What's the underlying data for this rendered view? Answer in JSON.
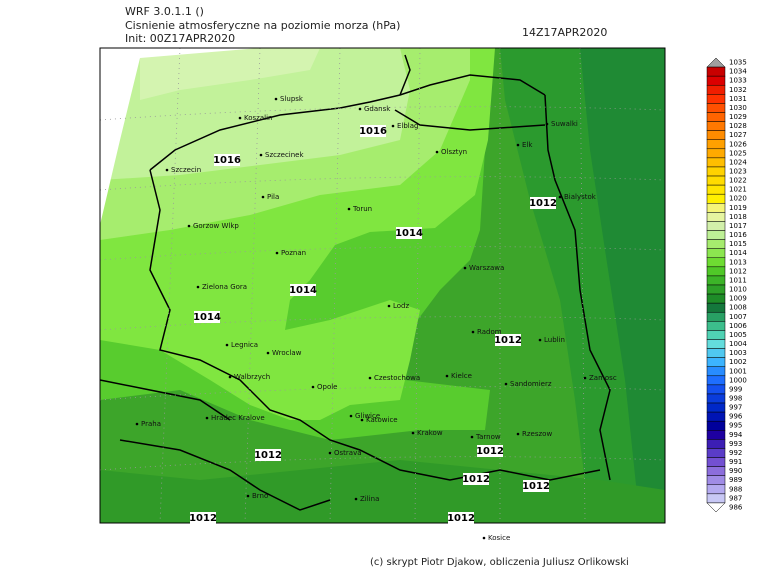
{
  "header": {
    "model": "WRF 3.0.1.1 ()",
    "title": "Cisnienie atmosferyczne na poziomie morza (hPa)",
    "init": "Init: 00Z17APR2020",
    "valid": "14Z17APR2020"
  },
  "cities": [
    "Slupsk",
    "Gdansk",
    "Elblag",
    "Koszalin",
    "Suwalki",
    "Olsztyn",
    "Elk",
    "Szczecinek",
    "Szczecin",
    "Bialystok",
    "Pila",
    "Torun",
    "Gorzow Wlkp",
    "Poznan",
    "Warszawa",
    "Zielona Gora",
    "Lodz",
    "Radom",
    "Lublin",
    "Legnica",
    "Wroclaw",
    "Walbrzych",
    "Czestochowa",
    "Kielce",
    "Sandomierz",
    "Zamosc",
    "Opole",
    "Hradec Kralove",
    "Gliwice",
    "Katowice",
    "Praha",
    "Krakow",
    "Tarnow",
    "Rzeszow",
    "Ostrava",
    "Brno",
    "Zilina",
    "Kosice"
  ],
  "isobar_labels": [
    "1016",
    "1016",
    "1014",
    "1014",
    "1014",
    "1012",
    "1012",
    "1012",
    "1012",
    "1012",
    "1012",
    "1012",
    "1012"
  ],
  "colorbar": {
    "labels": [
      1035,
      1034,
      1033,
      1032,
      1031,
      1030,
      1029,
      1028,
      1027,
      1026,
      1025,
      1024,
      1023,
      1022,
      1021,
      1020,
      1019,
      1018,
      1017,
      1016,
      1015,
      1014,
      1013,
      1012,
      1011,
      1010,
      1009,
      1008,
      1007,
      1006,
      1005,
      1004,
      1003,
      1002,
      1001,
      1000,
      999,
      998,
      997,
      996,
      995,
      994,
      993,
      992,
      991,
      990,
      989,
      988,
      987,
      986
    ],
    "colors": [
      "#a0a0a0",
      "#c80000",
      "#dc0000",
      "#f01e00",
      "#ff3200",
      "#ff5000",
      "#ff6400",
      "#ff7800",
      "#ff8c00",
      "#ffa000",
      "#ffaa00",
      "#ffbe00",
      "#ffd200",
      "#ffdc00",
      "#ffe600",
      "#fff000",
      "#f5f578",
      "#e6f5a0",
      "#d2f0aa",
      "#bef096",
      "#a6eb6e",
      "#8ce650",
      "#6edc32",
      "#50c828",
      "#3cb428",
      "#2da028",
      "#1e8c28",
      "#14783c",
      "#28a064",
      "#3cbe8c",
      "#50d2b4",
      "#64dcdc",
      "#50c8f0",
      "#3cb4ff",
      "#288cff",
      "#1e6eff",
      "#1450f0",
      "#0a3cdc",
      "#0028c8",
      "#0014b4",
      "#00009b",
      "#1e00a0",
      "#3c1eb4",
      "#5a3cc8",
      "#7350d2",
      "#8c6edc",
      "#a08ce6",
      "#b4aaf0",
      "#c8c8f5",
      "#ffffff"
    ]
  },
  "footer": "(c) skrypt Piotr Djakow, obliczenia Juliusz Orlikowski"
}
